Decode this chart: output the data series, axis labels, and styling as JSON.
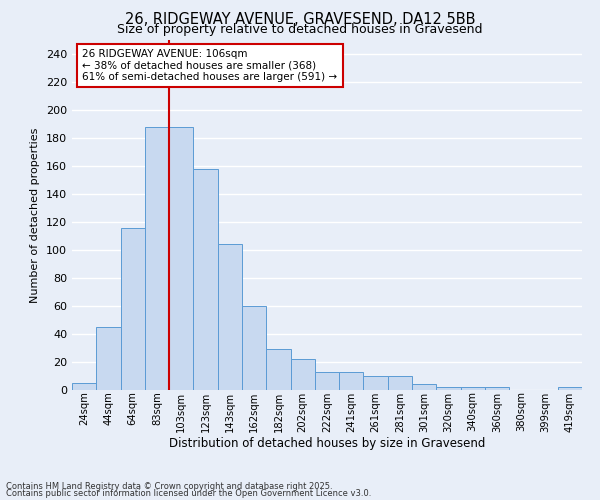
{
  "title_line1": "26, RIDGEWAY AVENUE, GRAVESEND, DA12 5BB",
  "title_line2": "Size of property relative to detached houses in Gravesend",
  "xlabel": "Distribution of detached houses by size in Gravesend",
  "ylabel": "Number of detached properties",
  "bar_labels": [
    "24sqm",
    "44sqm",
    "64sqm",
    "83sqm",
    "103sqm",
    "123sqm",
    "143sqm",
    "162sqm",
    "182sqm",
    "202sqm",
    "222sqm",
    "241sqm",
    "261sqm",
    "281sqm",
    "301sqm",
    "320sqm",
    "340sqm",
    "360sqm",
    "380sqm",
    "399sqm",
    "419sqm"
  ],
  "bar_heights": [
    5,
    45,
    116,
    188,
    188,
    158,
    104,
    60,
    29,
    22,
    13,
    13,
    10,
    10,
    4,
    2,
    2,
    2,
    0,
    0,
    2
  ],
  "bar_color": "#c8d9f0",
  "bar_edge_color": "#5b9bd5",
  "red_line_index": 4,
  "red_line_color": "#cc0000",
  "annotation_text": "26 RIDGEWAY AVENUE: 106sqm\n← 38% of detached houses are smaller (368)\n61% of semi-detached houses are larger (591) →",
  "annotation_box_color": "#ffffff",
  "annotation_border_color": "#cc0000",
  "ylim": [
    0,
    250
  ],
  "yticks": [
    0,
    20,
    40,
    60,
    80,
    100,
    120,
    140,
    160,
    180,
    200,
    220,
    240
  ],
  "background_color": "#e8eef8",
  "grid_color": "#ffffff",
  "footnote_line1": "Contains HM Land Registry data © Crown copyright and database right 2025.",
  "footnote_line2": "Contains public sector information licensed under the Open Government Licence v3.0."
}
